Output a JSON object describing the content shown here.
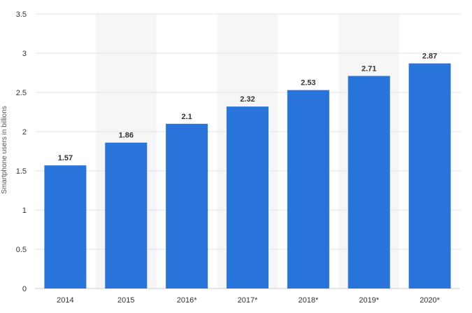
{
  "chart_data": {
    "type": "bar",
    "categories": [
      "2014",
      "2015",
      "2016*",
      "2017*",
      "2018*",
      "2019*",
      "2020*"
    ],
    "values": [
      1.57,
      1.86,
      2.1,
      2.32,
      2.53,
      2.71,
      2.87
    ],
    "value_labels": [
      "1.57",
      "1.86",
      "2.1",
      "2.32",
      "2.53",
      "2.71",
      "2.87"
    ],
    "title": "",
    "xlabel": "",
    "ylabel": "Smartphone users in billions",
    "ylim": [
      0,
      3.5
    ],
    "yticks": [
      0,
      0.5,
      1,
      1.5,
      2,
      2.5,
      3,
      3.5
    ],
    "ytick_labels": [
      "0",
      "0.5",
      "1",
      "1.5",
      "2",
      "2.5",
      "3",
      "3.5"
    ],
    "grid": true,
    "legend": "none",
    "colors": {
      "bar": "#2874db",
      "alt_band": "#f6f6f6",
      "grid": "#e3e3e3",
      "text": "#333333"
    }
  }
}
